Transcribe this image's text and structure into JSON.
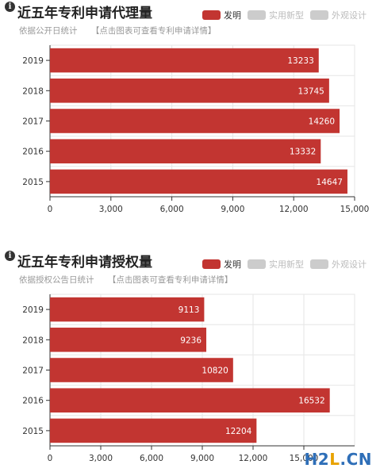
{
  "colors": {
    "bar": "#c23531",
    "legend_off": "#cccccc",
    "title": "#222222",
    "subtitle": "#999999"
  },
  "icons": {
    "info": "info-circle-icon"
  },
  "watermark": {
    "h": "H",
    "two": "2",
    "l": "L",
    "dot": ".",
    "cn": "CN"
  },
  "panels": [
    {
      "title": "近五年专利申请代理量",
      "subtitle": "依据公开日统计",
      "link": "【点击图表可查看专利申请详情】",
      "legend": [
        {
          "label": "发明",
          "active": true
        },
        {
          "label": "实用新型",
          "active": false
        },
        {
          "label": "外观设计",
          "active": false
        }
      ]
    },
    {
      "title": "近五年专利申请授权量",
      "subtitle": "依据授权公告日统计",
      "link": "【点击图表可查看专利申请详情】",
      "legend": [
        {
          "label": "发明",
          "active": true
        },
        {
          "label": "实用新型",
          "active": false
        },
        {
          "label": "外观设计",
          "active": false
        }
      ]
    }
  ],
  "chart_data": [
    {
      "type": "bar",
      "orientation": "horizontal",
      "categories": [
        "2019",
        "2018",
        "2017",
        "2016",
        "2015"
      ],
      "series": [
        {
          "name": "发明",
          "values": [
            13233,
            13745,
            14260,
            13332,
            14647
          ]
        }
      ],
      "xlim": [
        0,
        15000
      ],
      "xticks": [
        "0",
        "3,000",
        "6,000",
        "9,000",
        "12,000",
        "15,000"
      ],
      "grid": true
    },
    {
      "type": "bar",
      "orientation": "horizontal",
      "categories": [
        "2019",
        "2018",
        "2017",
        "2016",
        "2015"
      ],
      "series": [
        {
          "name": "发明",
          "values": [
            9113,
            9236,
            10820,
            16532,
            12204
          ]
        }
      ],
      "xlim": [
        0,
        18000
      ],
      "xticks": [
        "0",
        "3,000",
        "6,000",
        "9,000",
        "12,000",
        "15,000"
      ],
      "grid": true
    }
  ]
}
